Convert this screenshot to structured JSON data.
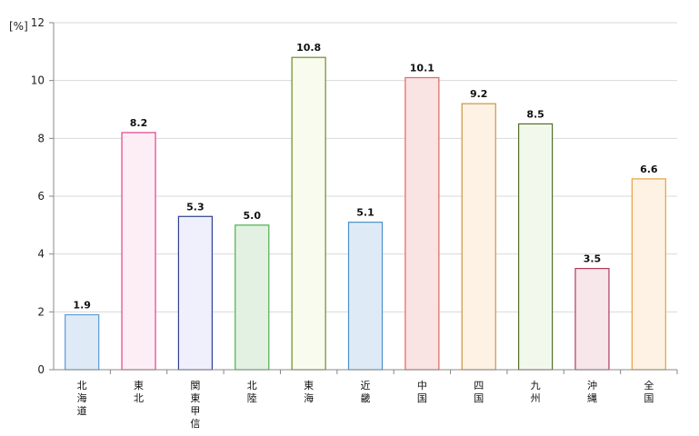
{
  "chart_data": {
    "type": "bar",
    "ylabel": "[%]",
    "ylim": [
      0,
      12
    ],
    "yticks": [
      0,
      2,
      4,
      6,
      8,
      10,
      12
    ],
    "grid": true,
    "categories": [
      "北海道",
      "東北",
      "関東甲信",
      "北陸",
      "東海",
      "近畿",
      "中国",
      "四国",
      "九州",
      "沖縄",
      "全国"
    ],
    "values": [
      1.9,
      8.2,
      5.3,
      5.0,
      10.8,
      5.1,
      10.1,
      9.2,
      8.5,
      3.5,
      6.6
    ],
    "value_labels": [
      "1.9",
      "8.2",
      "5.3",
      "5.0",
      "10.8",
      "5.1",
      "10.1",
      "9.2",
      "8.5",
      "3.5",
      "6.6"
    ],
    "bar_colors": [
      {
        "fill": "#deebf7",
        "stroke": "#5b9bd5"
      },
      {
        "fill": "#fdeef6",
        "stroke": "#e0408a"
      },
      {
        "fill": "#f0f0fc",
        "stroke": "#2e3f8f"
      },
      {
        "fill": "#e3f1e3",
        "stroke": "#4caf50"
      },
      {
        "fill": "#f8fbee",
        "stroke": "#6b8e23"
      },
      {
        "fill": "#deebf7",
        "stroke": "#4a90c8"
      },
      {
        "fill": "#f9e3e3",
        "stroke": "#e06666"
      },
      {
        "fill": "#fdf2e3",
        "stroke": "#c8954a"
      },
      {
        "fill": "#f3f8ec",
        "stroke": "#4f6f2a"
      },
      {
        "fill": "#f7e6ea",
        "stroke": "#b03a5b"
      },
      {
        "fill": "#fdf2e3",
        "stroke": "#e8a040"
      }
    ]
  }
}
